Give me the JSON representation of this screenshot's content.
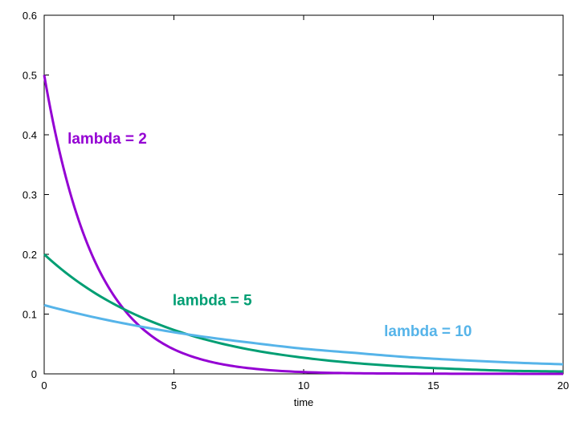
{
  "chart_data": {
    "type": "line",
    "title": "",
    "xlabel": "time",
    "ylabel": "",
    "xlim": [
      0,
      20
    ],
    "ylim": [
      0,
      0.6
    ],
    "xticks": [
      0,
      5,
      10,
      15,
      20
    ],
    "yticks": [
      0,
      0.1,
      0.2,
      0.3,
      0.4,
      0.5,
      0.6
    ],
    "xtick_labels": [
      "0",
      "5",
      "10",
      "15",
      "20"
    ],
    "ytick_labels": [
      "0",
      "0.1",
      "0.2",
      "0.3",
      "0.4",
      "0.5",
      "0.6"
    ],
    "grid": false,
    "legend": "none",
    "series": [
      {
        "name": "lambda = 2",
        "color": "#9400d3",
        "x": [
          0,
          1,
          2,
          3,
          4,
          5,
          6,
          7,
          8,
          10,
          12,
          14,
          16,
          18,
          20
        ],
        "y": [
          0.5,
          0.303,
          0.184,
          0.112,
          0.068,
          0.041,
          0.025,
          0.015,
          0.009,
          0.003,
          0.001,
          0.0005,
          0.0002,
          0.0001,
          0.0
        ]
      },
      {
        "name": "lambda = 5",
        "color": "#009e73",
        "x": [
          0,
          2,
          4,
          6,
          8,
          10,
          12,
          14,
          16,
          18,
          20
        ],
        "y": [
          0.2,
          0.134,
          0.09,
          0.06,
          0.04,
          0.027,
          0.018,
          0.012,
          0.008,
          0.005,
          0.004
        ]
      },
      {
        "name": "lambda = 10",
        "color": "#56b4e9",
        "x": [
          0,
          2,
          4,
          6,
          8,
          10,
          12,
          14,
          16,
          18,
          20
        ],
        "y": [
          0.115,
          0.094,
          0.077,
          0.063,
          0.052,
          0.042,
          0.035,
          0.028,
          0.023,
          0.019,
          0.016
        ]
      }
    ],
    "annotations": [
      {
        "text": "lambda = 2",
        "x": 0.9,
        "y": 0.385,
        "color": "#9400d3"
      },
      {
        "text": "lambda = 5",
        "x": 4.95,
        "y": 0.115,
        "color": "#009e73"
      },
      {
        "text": "lambda = 10",
        "x": 13.1,
        "y": 0.063,
        "color": "#56b4e9"
      }
    ]
  }
}
